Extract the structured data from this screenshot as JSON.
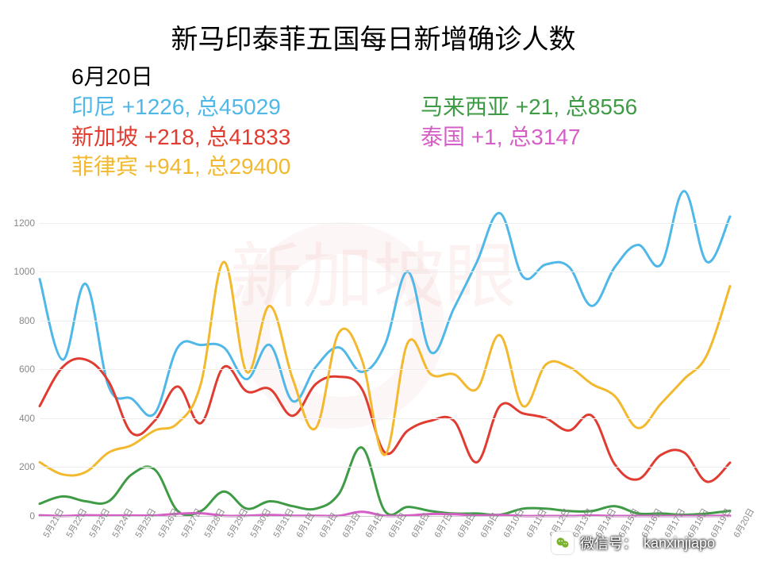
{
  "title": "新马印泰菲五国每日新增确诊人数",
  "date_label": "6月20日",
  "watermark_text": "新加坡眼",
  "legend_left": [
    {
      "name": "印尼",
      "delta": "+1226",
      "total": "总45029",
      "color": "#4fb8e8"
    },
    {
      "name": "新加坡",
      "delta": "+218",
      "total": "总41833",
      "color": "#e03c31"
    },
    {
      "name": "菲律宾",
      "delta": "+941",
      "total": "总29400",
      "color": "#f2b92e"
    }
  ],
  "legend_right": [
    {
      "name": "马来西亚",
      "delta": "+21",
      "total": "总8556",
      "color": "#3f9b46"
    },
    {
      "name": "泰国",
      "delta": "+1",
      "total": "总3147",
      "color": "#d65fc7"
    }
  ],
  "footer_label": "微信号：",
  "footer_id": "kanxinjiapo",
  "chart": {
    "type": "line",
    "background_color": "#ffffff",
    "grid_color": "#eeeeee",
    "axis_color": "#cccccc",
    "tick_color": "#888888",
    "tick_fontsize": 12,
    "ylim": [
      0,
      1300
    ],
    "yticks": [
      0,
      200,
      400,
      600,
      800,
      1000,
      1200
    ],
    "x_categories": [
      "5月21日",
      "5月22日",
      "5月23日",
      "5月24日",
      "5月25日",
      "5月26日",
      "5月27日",
      "5月28日",
      "5月29日",
      "5月30日",
      "5月31日",
      "6月1日",
      "6月2日",
      "6月3日",
      "6月4日",
      "6月5日",
      "6月6日",
      "6月7日",
      "6月8日",
      "6月9日",
      "6月10日",
      "6月11日",
      "6月12日",
      "6月13日",
      "6月14日",
      "6月15日",
      "6月16日",
      "6月17日",
      "6月18日",
      "6月19日",
      "6月20日"
    ],
    "line_width": 3,
    "smoothing": 0.18,
    "series": [
      {
        "name": "indonesia",
        "color": "#4fb8e8",
        "values": [
          970,
          640,
          950,
          530,
          480,
          420,
          690,
          700,
          690,
          560,
          700,
          470,
          610,
          690,
          590,
          700,
          1000,
          670,
          850,
          1040,
          1240,
          980,
          1030,
          1020,
          860,
          1020,
          1110,
          1030,
          1330,
          1040,
          1226
        ]
      },
      {
        "name": "singapore",
        "color": "#e03c31",
        "values": [
          450,
          610,
          640,
          550,
          340,
          390,
          530,
          380,
          610,
          510,
          520,
          410,
          540,
          570,
          520,
          260,
          350,
          390,
          390,
          220,
          450,
          420,
          400,
          350,
          410,
          210,
          150,
          250,
          260,
          140,
          218
        ]
      },
      {
        "name": "philippines",
        "color": "#f2b92e",
        "values": [
          220,
          170,
          180,
          260,
          290,
          350,
          380,
          540,
          1040,
          590,
          860,
          560,
          360,
          750,
          640,
          250,
          710,
          580,
          580,
          520,
          740,
          450,
          620,
          610,
          540,
          490,
          360,
          460,
          560,
          660,
          941
        ]
      },
      {
        "name": "malaysia",
        "color": "#3f9b46",
        "values": [
          50,
          80,
          60,
          60,
          170,
          190,
          20,
          20,
          100,
          30,
          60,
          40,
          30,
          90,
          280,
          20,
          37,
          20,
          10,
          10,
          5,
          30,
          30,
          20,
          20,
          40,
          10,
          10,
          5,
          10,
          21
        ]
      },
      {
        "name": "thailand",
        "color": "#d65fc7",
        "values": [
          3,
          0,
          3,
          2,
          2,
          2,
          9,
          11,
          1,
          1,
          4,
          1,
          1,
          1,
          17,
          1,
          2,
          8,
          7,
          2,
          4,
          0,
          0,
          0,
          2,
          0,
          0,
          0,
          0,
          0,
          1
        ]
      }
    ]
  }
}
